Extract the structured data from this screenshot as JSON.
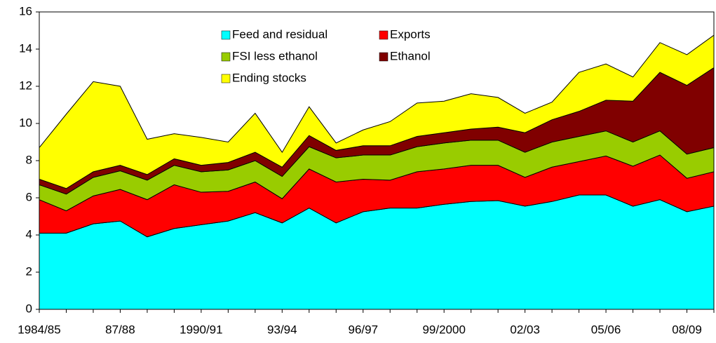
{
  "chart_data": {
    "type": "stacked_area",
    "categories": [
      "1984/85",
      null,
      null,
      "87/88",
      null,
      null,
      "1990/91",
      null,
      null,
      "93/94",
      null,
      null,
      "96/97",
      null,
      null,
      "99/2000",
      null,
      null,
      "02/03",
      null,
      null,
      "05/06",
      null,
      null,
      "08/09",
      null
    ],
    "series": [
      {
        "name": "Feed and residual",
        "color": "#00ffff",
        "values": [
          4.1,
          4.1,
          4.6,
          4.75,
          3.9,
          4.35,
          4.55,
          4.75,
          5.2,
          4.65,
          5.45,
          4.65,
          5.25,
          5.45,
          5.45,
          5.65,
          5.8,
          5.85,
          5.55,
          5.8,
          6.15,
          6.15,
          5.55,
          5.9,
          5.25,
          5.55
        ]
      },
      {
        "name": "Exports",
        "color": "#ff0000",
        "values": [
          1.8,
          1.2,
          1.5,
          1.7,
          2.0,
          2.35,
          1.75,
          1.6,
          1.65,
          1.3,
          2.1,
          2.2,
          1.75,
          1.5,
          1.95,
          1.9,
          1.95,
          1.9,
          1.55,
          1.85,
          1.8,
          2.1,
          2.15,
          2.4,
          1.8,
          1.85
        ]
      },
      {
        "name": "FSI less ethanol",
        "color": "#99cc00",
        "values": [
          0.8,
          0.9,
          1.0,
          1.0,
          1.05,
          1.05,
          1.1,
          1.15,
          1.15,
          1.2,
          1.2,
          1.3,
          1.3,
          1.35,
          1.35,
          1.4,
          1.35,
          1.35,
          1.35,
          1.35,
          1.35,
          1.35,
          1.3,
          1.3,
          1.3,
          1.3
        ]
      },
      {
        "name": "Ethanol",
        "color": "#800000",
        "values": [
          0.3,
          0.3,
          0.3,
          0.3,
          0.3,
          0.35,
          0.35,
          0.4,
          0.45,
          0.5,
          0.6,
          0.4,
          0.5,
          0.5,
          0.55,
          0.55,
          0.6,
          0.7,
          1.05,
          1.2,
          1.35,
          1.65,
          2.2,
          3.15,
          3.7,
          4.3
        ]
      },
      {
        "name": "Ending stocks",
        "color": "#ffff00",
        "values": [
          1.7,
          4.0,
          4.85,
          4.25,
          1.9,
          1.35,
          1.5,
          1.1,
          2.1,
          0.8,
          1.55,
          0.4,
          0.85,
          1.3,
          1.8,
          1.7,
          1.9,
          1.6,
          1.05,
          0.95,
          2.1,
          1.95,
          1.3,
          1.6,
          1.65,
          1.75
        ]
      }
    ],
    "ylim": [
      0,
      16
    ],
    "yticks": [
      0,
      2,
      4,
      6,
      8,
      10,
      12,
      14,
      16
    ],
    "grid": false
  }
}
